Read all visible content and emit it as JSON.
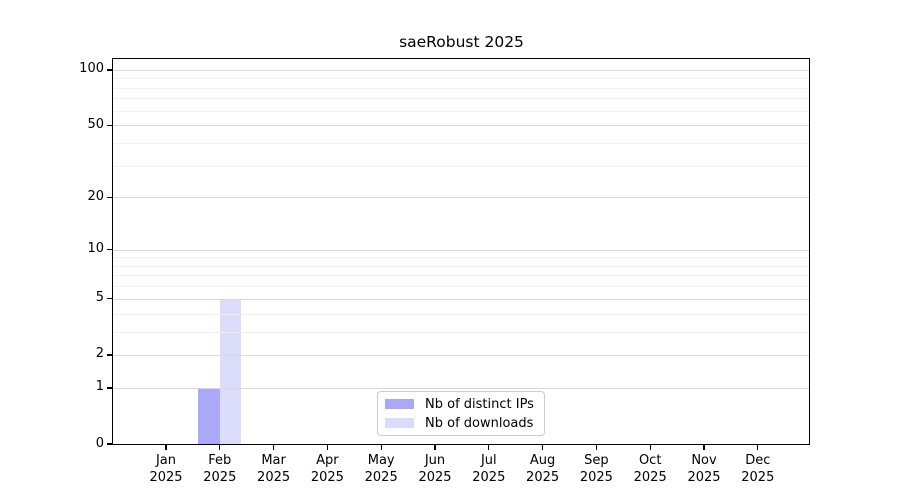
{
  "chart_data": {
    "type": "bar",
    "title": "saeRobust 2025",
    "months": [
      "Jan",
      "Feb",
      "Mar",
      "Apr",
      "May",
      "Jun",
      "Jul",
      "Aug",
      "Sep",
      "Oct",
      "Nov",
      "Dec"
    ],
    "year": "2025",
    "series": [
      {
        "name": "Nb of distinct IPs",
        "color": "#a9a9f8",
        "values": [
          0,
          1,
          0,
          0,
          0,
          0,
          0,
          0,
          0,
          0,
          0,
          0
        ]
      },
      {
        "name": "Nb of downloads",
        "color": "#dbdbfa",
        "values": [
          0,
          5,
          0,
          0,
          0,
          0,
          0,
          0,
          0,
          0,
          0,
          0
        ]
      }
    ],
    "y_axis": {
      "scale": "log1p",
      "major_ticks": [
        0,
        1,
        2,
        5,
        10,
        20,
        50,
        100
      ],
      "minor_ticks": [
        3,
        4,
        6,
        7,
        8,
        9,
        30,
        40,
        60,
        70,
        80,
        90
      ],
      "ylim": [
        0,
        113
      ]
    },
    "grid": {
      "major_color": "#d9d9d9",
      "minor_color": "#f0f0f0",
      "enabled": true
    },
    "legend": {
      "position": "lower center"
    }
  }
}
